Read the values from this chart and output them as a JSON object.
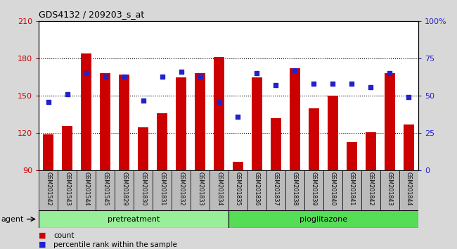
{
  "title": "GDS4132 / 209203_s_at",
  "samples": [
    "GSM201542",
    "GSM201543",
    "GSM201544",
    "GSM201545",
    "GSM201829",
    "GSM201830",
    "GSM201831",
    "GSM201832",
    "GSM201833",
    "GSM201834",
    "GSM201835",
    "GSM201836",
    "GSM201837",
    "GSM201838",
    "GSM201839",
    "GSM201840",
    "GSM201841",
    "GSM201842",
    "GSM201843",
    "GSM201844"
  ],
  "counts": [
    119,
    126,
    184,
    168,
    167,
    125,
    136,
    165,
    168,
    181,
    97,
    165,
    132,
    172,
    140,
    150,
    113,
    121,
    168,
    127
  ],
  "percentiles": [
    46,
    51,
    65,
    63,
    63,
    47,
    63,
    66,
    63,
    46,
    36,
    65,
    57,
    67,
    58,
    58,
    58,
    56,
    65,
    49
  ],
  "groups": [
    "pretreatment",
    "pretreatment",
    "pretreatment",
    "pretreatment",
    "pretreatment",
    "pretreatment",
    "pretreatment",
    "pretreatment",
    "pretreatment",
    "pretreatment",
    "pioglitazone",
    "pioglitazone",
    "pioglitazone",
    "pioglitazone",
    "pioglitazone",
    "pioglitazone",
    "pioglitazone",
    "pioglitazone",
    "pioglitazone",
    "pioglitazone"
  ],
  "bar_color": "#cc0000",
  "dot_color": "#2222cc",
  "bar_bottom": 90,
  "ylim_left": [
    90,
    210
  ],
  "ylim_right": [
    0,
    100
  ],
  "yticks_left": [
    90,
    120,
    150,
    180,
    210
  ],
  "yticks_right": [
    0,
    25,
    50,
    75,
    100
  ],
  "yticklabels_right": [
    "0",
    "25",
    "50",
    "75",
    "100%"
  ],
  "group_colors": {
    "pretreatment": "#99ee99",
    "pioglitazone": "#55dd55"
  },
  "background_color": "#d8d8d8",
  "plot_bg": "#ffffff",
  "label_bg": "#bbbbbb",
  "legend_count_label": "count",
  "legend_pct_label": "percentile rank within the sample",
  "grid_vals": [
    120,
    150,
    180
  ]
}
